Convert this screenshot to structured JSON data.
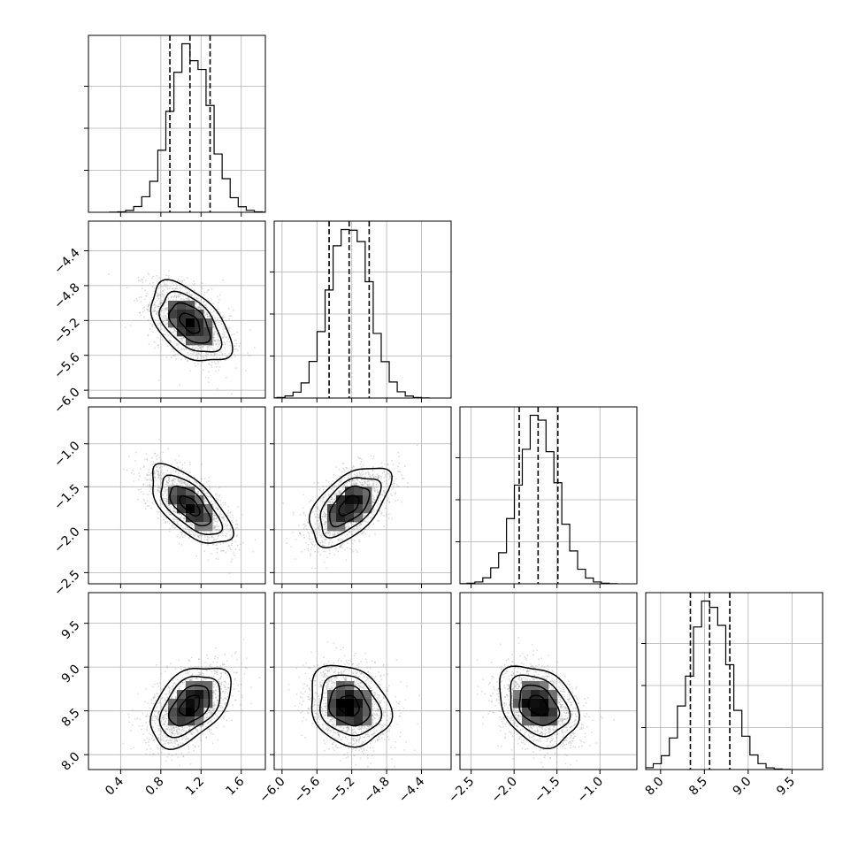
{
  "chart_data": {
    "type": "corner",
    "title": "",
    "grid": true,
    "parameters": [
      {
        "name": "",
        "mean": 1.09,
        "std": 0.2,
        "quantiles": [
          0.89,
          1.09,
          1.29
        ],
        "lim": [
          0.08,
          1.84
        ],
        "ticks": [
          0.4,
          0.8,
          1.2,
          1.6
        ],
        "tick_labels": [
          "0.4",
          "0.8",
          "1.2",
          "1.6"
        ]
      },
      {
        "name": "",
        "mean": -5.23,
        "std": 0.23,
        "quantiles": [
          -5.46,
          -5.23,
          -5.0
        ],
        "lim": [
          -6.09,
          -4.06
        ],
        "ticks": [
          -6.0,
          -5.6,
          -5.2,
          -4.8,
          -4.4
        ],
        "tick_labels": [
          "−6.0",
          "−5.6",
          "−5.2",
          "−4.8",
          "−4.4"
        ]
      },
      {
        "name": "",
        "mean": -1.72,
        "std": 0.23,
        "quantiles": [
          -1.94,
          -1.72,
          -1.49
        ],
        "lim": [
          -2.63,
          -0.57
        ],
        "ticks": [
          -2.5,
          -2.0,
          -1.5,
          -1.0
        ],
        "tick_labels": [
          "−2.5",
          "−2.0",
          "−1.5",
          "−1.0"
        ]
      },
      {
        "name": "",
        "mean": 8.56,
        "std": 0.23,
        "quantiles": [
          8.34,
          8.56,
          8.79
        ],
        "lim": [
          7.83,
          9.85
        ],
        "ticks": [
          8.0,
          8.5,
          9.0,
          9.5
        ],
        "tick_labels": [
          "8.0",
          "8.5",
          "9.0",
          "9.5"
        ]
      }
    ],
    "correlations": [
      {
        "pair": [
          0,
          1
        ],
        "r": -0.5
      },
      {
        "pair": [
          0,
          2
        ],
        "r": -0.65
      },
      {
        "pair": [
          1,
          2
        ],
        "r": 0.55
      },
      {
        "pair": [
          0,
          3
        ],
        "r": 0.45
      },
      {
        "pair": [
          1,
          3
        ],
        "r": -0.2
      },
      {
        "pair": [
          2,
          3
        ],
        "r": -0.3
      }
    ],
    "contour_levels_sigma": [
      0.5,
      1.0,
      1.5,
      2.0
    ],
    "histogram_bins": 20,
    "colors": {
      "points": "#9a9a9a",
      "contour": "#000000",
      "hist": "#000000"
    }
  }
}
